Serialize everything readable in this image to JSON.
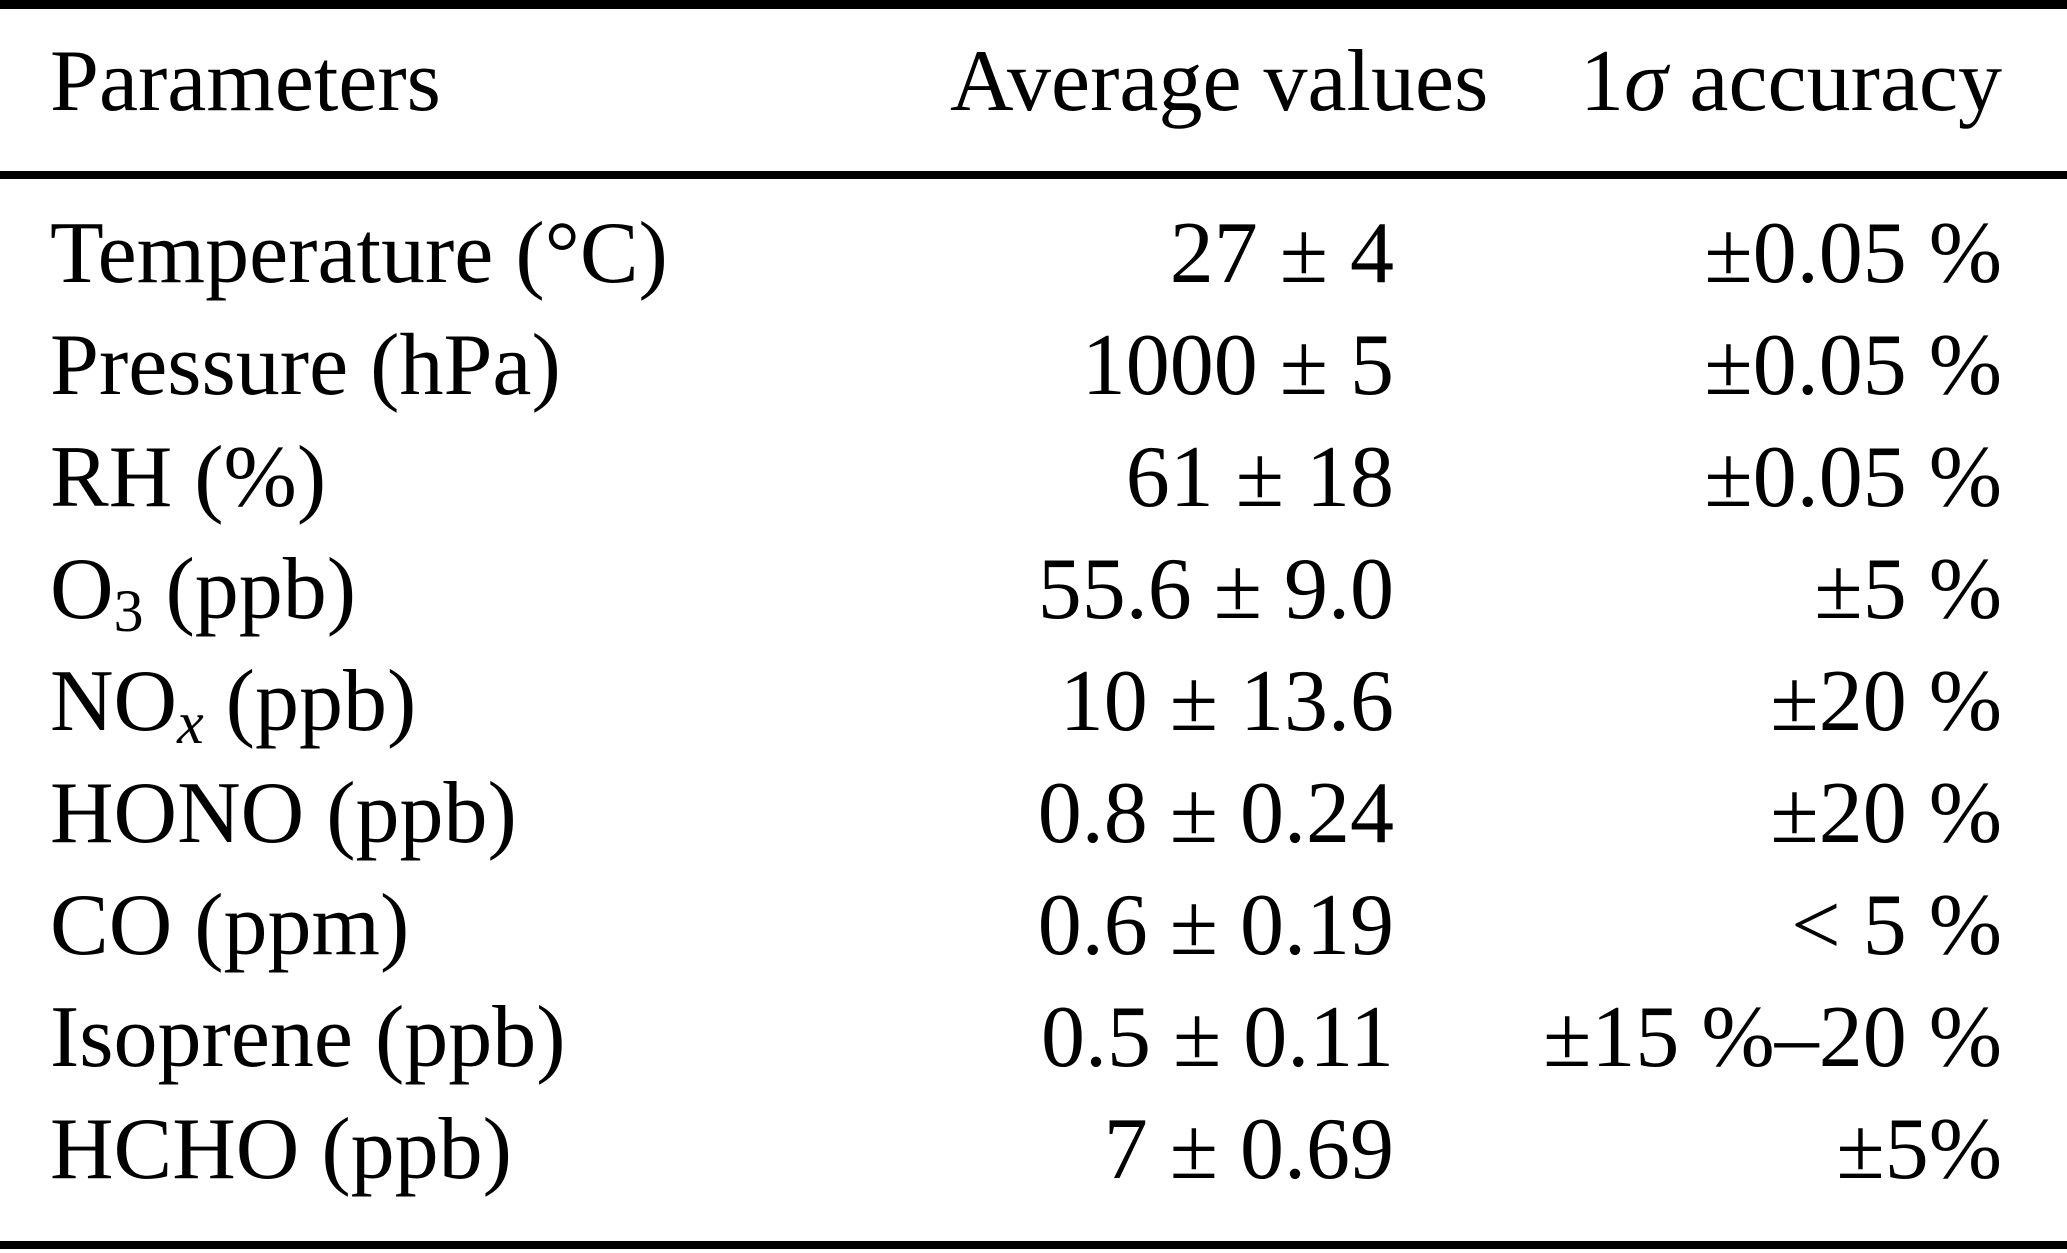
{
  "colors": {
    "text": "#000000",
    "background": "#ffffff",
    "rule": "#000000"
  },
  "table": {
    "headers": {
      "parameters": "Parameters",
      "average_values": "Average values",
      "accuracy_prefix": "1",
      "accuracy_sigma": "σ",
      "accuracy_rest": " accuracy"
    },
    "rows": [
      {
        "param": "Temperature",
        "param_sub": "",
        "param_rest": " (°C)",
        "avg": "27 ± 4",
        "acc": "±0.05 %"
      },
      {
        "param": "Pressure",
        "param_sub": "",
        "param_rest": " (hPa)",
        "avg": "1000 ± 5",
        "acc": "±0.05 %"
      },
      {
        "param": "RH",
        "param_sub": "",
        "param_rest": " (%)",
        "avg": "61 ± 18",
        "acc": "±0.05 %"
      },
      {
        "param": "O",
        "param_sub": "3",
        "param_rest": " (ppb)",
        "avg": "55.6 ± 9.0",
        "acc": "±5 %"
      },
      {
        "param": "NO",
        "param_sub": "x",
        "param_rest": " (ppb)",
        "avg": "10 ± 13.6",
        "acc": "±20 %"
      },
      {
        "param": "HONO",
        "param_sub": "",
        "param_rest": " (ppb)",
        "avg": "0.8 ± 0.24",
        "acc": "±20 %"
      },
      {
        "param": "CO",
        "param_sub": "",
        "param_rest": " (ppm)",
        "avg": "0.6 ± 0.19",
        "acc": "< 5 %"
      },
      {
        "param": "Isoprene",
        "param_sub": "",
        "param_rest": " (ppb)",
        "avg": "0.5 ± 0.11",
        "acc": "±15 %–20 %"
      },
      {
        "param": "HCHO",
        "param_sub": "",
        "param_rest": " (ppb)",
        "avg": "7 ± 0.69",
        "acc": "±5%"
      }
    ]
  }
}
